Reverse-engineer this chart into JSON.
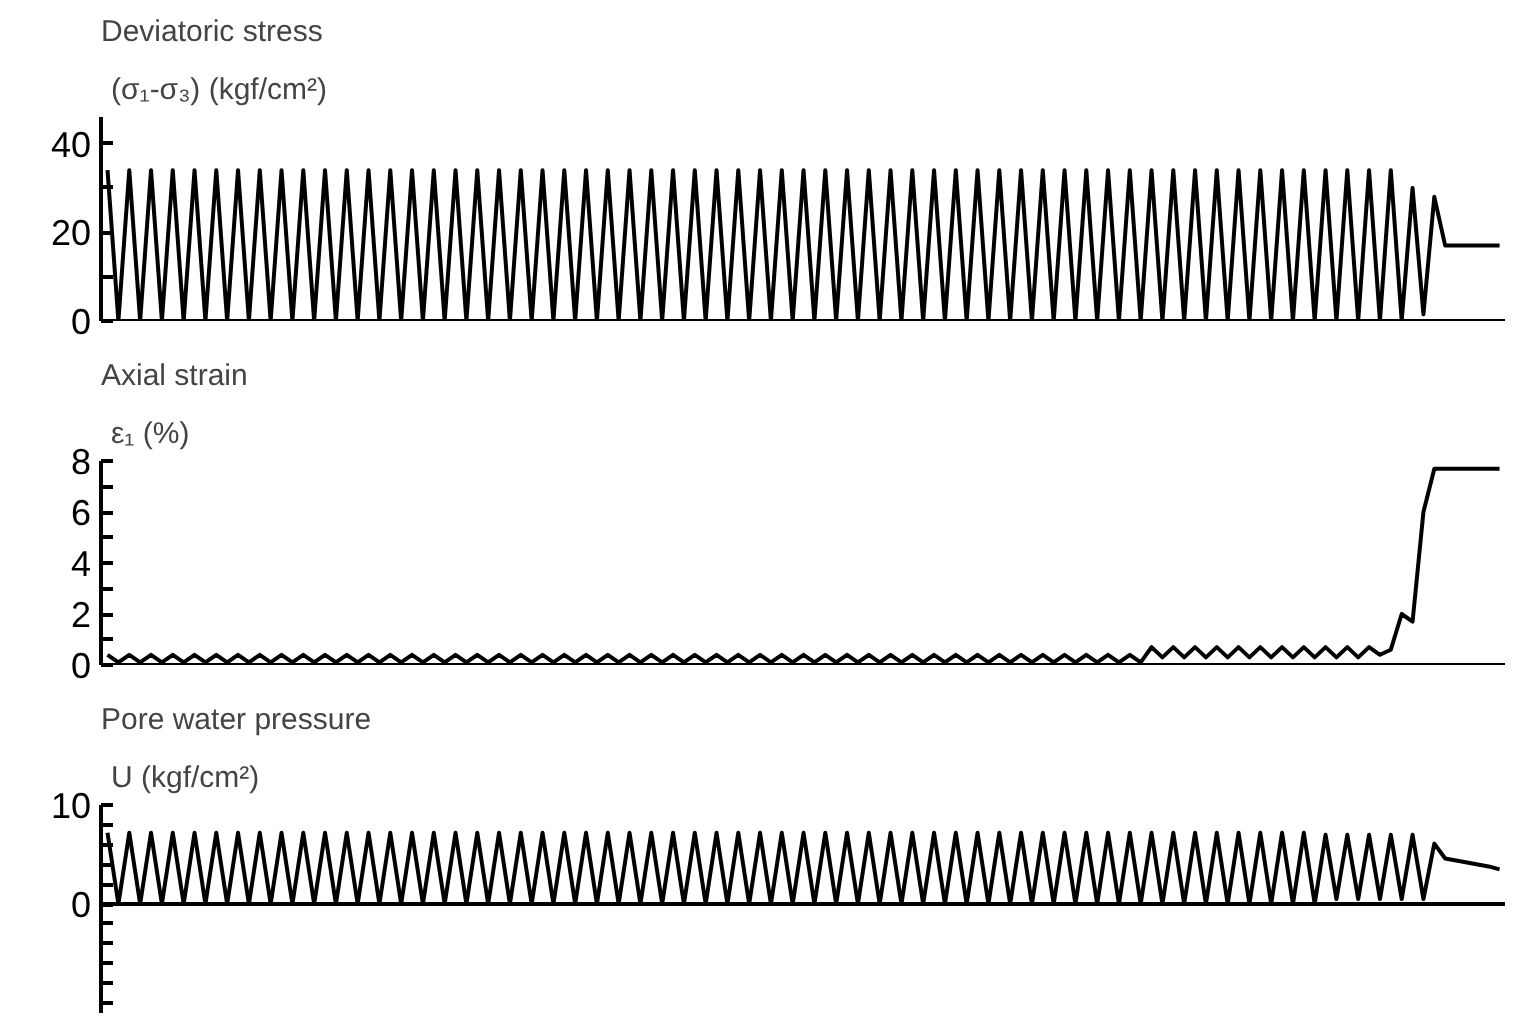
{
  "chart_data": [
    {
      "type": "line",
      "title": "Deviatoric stress",
      "ylabel": "(σ₁-σ₃) (kgf/cm²)",
      "categories": [
        null,
        null,
        null,
        null,
        null,
        null,
        null,
        null,
        null,
        null,
        null,
        null,
        null,
        null,
        null,
        null,
        null,
        null,
        null,
        null,
        null,
        null,
        null,
        null,
        null,
        null,
        null,
        null,
        null,
        null,
        null,
        null,
        null,
        null,
        null,
        null,
        null,
        null,
        null,
        null,
        null,
        null,
        null,
        null,
        null,
        null,
        null,
        null,
        null,
        null,
        null,
        null,
        null,
        null,
        null,
        null,
        null,
        null,
        null,
        null,
        null,
        null,
        null,
        null,
        null,
        null,
        null,
        null,
        null,
        null,
        null,
        null,
        null,
        null,
        null,
        null,
        null,
        null,
        null,
        null,
        null,
        null,
        null,
        null,
        null,
        null,
        null,
        null,
        null,
        null,
        null,
        null,
        null,
        null,
        null,
        null,
        null,
        null,
        null,
        null,
        null,
        null,
        null,
        null,
        null,
        null,
        null,
        null,
        null,
        null,
        null,
        null,
        null,
        null,
        null,
        null,
        null,
        null,
        null,
        null,
        null,
        null,
        null,
        null,
        null,
        null,
        null,
        null,
        null
      ],
      "series": [
        {
          "color": "#000000",
          "values": [
            34,
            0,
            34,
            0,
            34,
            0,
            34,
            0,
            34,
            0,
            34,
            0,
            34,
            0,
            34,
            0,
            34,
            0,
            34,
            0,
            34,
            0,
            34,
            0,
            34,
            0,
            34,
            0,
            34,
            0,
            34,
            0,
            34,
            0,
            34,
            0,
            34,
            0,
            34,
            0,
            34,
            0,
            34,
            0,
            34,
            0,
            34,
            0,
            34,
            0,
            34,
            0,
            34,
            0,
            34,
            0,
            34,
            0,
            34,
            0,
            34,
            0,
            34,
            0,
            34,
            0,
            34,
            0,
            34,
            0,
            34,
            0,
            34,
            0,
            34,
            0,
            34,
            0,
            34,
            0,
            34,
            0,
            34,
            0,
            34,
            0,
            34,
            0,
            34,
            0,
            34,
            0,
            34,
            0,
            34,
            0,
            34,
            0,
            34,
            0,
            34,
            0,
            34,
            0,
            34,
            0,
            34,
            0,
            34,
            0,
            34,
            0,
            34,
            0,
            34,
            0,
            34,
            0,
            34,
            0,
            30,
            1.5,
            28,
            17,
            17,
            17,
            17,
            17,
            17
          ]
        }
      ],
      "ylim": [
        0,
        46
      ],
      "yticks": [
        0,
        {
          "value": 10,
          "label": null
        },
        20,
        {
          "value": 30,
          "label": null
        },
        40
      ],
      "tick_labels": "y",
      "ref_lines": [
        {
          "axis": "y",
          "value": 0
        }
      ]
    },
    {
      "type": "line",
      "title": "Axial strain",
      "ylabel": "ε₁ (%)",
      "categories": [
        null,
        null,
        null,
        null,
        null,
        null,
        null,
        null,
        null,
        null,
        null,
        null,
        null,
        null,
        null,
        null,
        null,
        null,
        null,
        null,
        null,
        null,
        null,
        null,
        null,
        null,
        null,
        null,
        null,
        null,
        null,
        null,
        null,
        null,
        null,
        null,
        null,
        null,
        null,
        null,
        null,
        null,
        null,
        null,
        null,
        null,
        null,
        null,
        null,
        null,
        null,
        null,
        null,
        null,
        null,
        null,
        null,
        null,
        null,
        null,
        null,
        null,
        null,
        null,
        null,
        null,
        null,
        null,
        null,
        null,
        null,
        null,
        null,
        null,
        null,
        null,
        null,
        null,
        null,
        null,
        null,
        null,
        null,
        null,
        null,
        null,
        null,
        null,
        null,
        null,
        null,
        null,
        null,
        null,
        null,
        null,
        null,
        null,
        null,
        null,
        null,
        null,
        null,
        null,
        null,
        null,
        null,
        null,
        null,
        null,
        null,
        null,
        null,
        null,
        null,
        null,
        null,
        null,
        null,
        null,
        null,
        null,
        null,
        null,
        null,
        null,
        null,
        null,
        null
      ],
      "series": [
        {
          "color": "#000000",
          "values": [
            0.4,
            0.1,
            0.4,
            0.1,
            0.4,
            0.1,
            0.4,
            0.1,
            0.4,
            0.1,
            0.4,
            0.1,
            0.4,
            0.1,
            0.4,
            0.1,
            0.4,
            0.1,
            0.4,
            0.1,
            0.4,
            0.1,
            0.4,
            0.1,
            0.4,
            0.1,
            0.4,
            0.1,
            0.4,
            0.1,
            0.4,
            0.1,
            0.4,
            0.1,
            0.4,
            0.1,
            0.4,
            0.1,
            0.4,
            0.1,
            0.4,
            0.1,
            0.4,
            0.1,
            0.4,
            0.1,
            0.4,
            0.1,
            0.4,
            0.1,
            0.4,
            0.1,
            0.4,
            0.1,
            0.4,
            0.1,
            0.4,
            0.1,
            0.4,
            0.1,
            0.4,
            0.1,
            0.4,
            0.1,
            0.4,
            0.1,
            0.4,
            0.1,
            0.4,
            0.1,
            0.4,
            0.1,
            0.4,
            0.1,
            0.4,
            0.1,
            0.4,
            0.1,
            0.4,
            0.1,
            0.4,
            0.1,
            0.4,
            0.1,
            0.4,
            0.1,
            0.4,
            0.1,
            0.4,
            0.1,
            0.4,
            0.1,
            0.4,
            0.1,
            0.4,
            0.1,
            0.7,
            0.3,
            0.7,
            0.3,
            0.7,
            0.3,
            0.7,
            0.3,
            0.7,
            0.3,
            0.7,
            0.3,
            0.7,
            0.3,
            0.7,
            0.3,
            0.7,
            0.3,
            0.7,
            0.3,
            0.7,
            0.4,
            0.6,
            2.0,
            1.7,
            6.0,
            7.7,
            7.7,
            7.7,
            7.7,
            7.7,
            7.7,
            7.7
          ]
        }
      ],
      "ylim": [
        0,
        8
      ],
      "yticks": [
        0,
        {
          "value": 1,
          "label": null
        },
        2,
        {
          "value": 3,
          "label": null
        },
        4,
        {
          "value": 5,
          "label": null
        },
        6,
        {
          "value": 7,
          "label": null
        },
        8
      ],
      "tick_labels": "y",
      "ref_lines": [
        {
          "axis": "y",
          "value": 0
        }
      ]
    },
    {
      "type": "line",
      "title": "Pore water pressure",
      "ylabel": "U (kgf/cm²)",
      "categories": [
        null,
        null,
        null,
        null,
        null,
        null,
        null,
        null,
        null,
        null,
        null,
        null,
        null,
        null,
        null,
        null,
        null,
        null,
        null,
        null,
        null,
        null,
        null,
        null,
        null,
        null,
        null,
        null,
        null,
        null,
        null,
        null,
        null,
        null,
        null,
        null,
        null,
        null,
        null,
        null,
        null,
        null,
        null,
        null,
        null,
        null,
        null,
        null,
        null,
        null,
        null,
        null,
        null,
        null,
        null,
        null,
        null,
        null,
        null,
        null,
        null,
        null,
        null,
        null,
        null,
        null,
        null,
        null,
        null,
        null,
        null,
        null,
        null,
        null,
        null,
        null,
        null,
        null,
        null,
        null,
        null,
        null,
        null,
        null,
        null,
        null,
        null,
        null,
        null,
        null,
        null,
        null,
        null,
        null,
        null,
        null,
        null,
        null,
        null,
        null,
        null,
        null,
        null,
        null,
        null,
        null,
        null,
        null,
        null,
        null,
        null,
        null,
        null,
        null,
        null,
        null,
        null,
        null,
        null,
        null,
        null,
        null,
        null,
        null,
        null,
        null,
        null,
        null,
        null
      ],
      "series": [
        {
          "color": "#000000",
          "values": [
            7.2,
            0,
            7.2,
            0,
            7.2,
            0,
            7.2,
            0,
            7.2,
            0,
            7.2,
            0,
            7.2,
            0,
            7.2,
            0,
            7.2,
            0,
            7.2,
            0,
            7.2,
            0,
            7.2,
            0,
            7.2,
            0,
            7.2,
            0,
            7.2,
            0,
            7.2,
            0,
            7.2,
            0,
            7.2,
            0,
            7.2,
            0,
            7.2,
            0,
            7.2,
            0,
            7.2,
            0,
            7.2,
            0,
            7.2,
            0,
            7.2,
            0,
            7.2,
            0,
            7.2,
            0,
            7.2,
            0,
            7.2,
            0,
            7.2,
            0,
            7.2,
            0,
            7.2,
            0,
            7.2,
            0,
            7.2,
            0,
            7.2,
            0,
            7.2,
            0,
            7.2,
            0,
            7.2,
            0,
            7.2,
            0,
            7.2,
            0,
            7.2,
            0,
            7.2,
            0,
            7.2,
            0,
            7.2,
            0,
            7.2,
            0,
            7.2,
            0,
            7.2,
            0,
            7.2,
            0,
            7.2,
            0,
            7.2,
            0,
            7.2,
            0,
            7.2,
            0,
            7.2,
            0,
            7.2,
            0,
            7.2,
            0,
            7.2,
            0,
            7,
            0.5,
            7,
            0.5,
            7,
            0.5,
            7,
            0.5,
            7,
            0.5,
            6.1,
            4.6,
            4.4,
            4.2,
            4.0,
            3.8,
            3.5
          ]
        }
      ],
      "ylim": [
        -11,
        10
      ],
      "yticks": [
        {
          "value": -10,
          "label": null
        },
        {
          "value": -8,
          "label": null
        },
        {
          "value": -6,
          "label": null
        },
        {
          "value": -4,
          "label": null
        },
        {
          "value": -2,
          "label": null
        },
        0,
        {
          "value": 2,
          "label": null
        },
        {
          "value": 4,
          "label": null
        },
        {
          "value": 6,
          "label": null
        },
        {
          "value": 8,
          "label": null
        },
        10
      ],
      "tick_labels": "y",
      "ref_lines": [
        {
          "axis": "y",
          "value": 0
        }
      ]
    }
  ]
}
